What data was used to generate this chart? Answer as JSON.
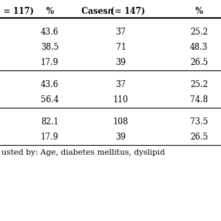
{
  "header_col0": "= 117)",
  "header_col1": "%",
  "header_col2_pre": "Cases (",
  "header_col2_italic": "n",
  "header_col2_post": " = 147)",
  "header_col3": "%",
  "sections": [
    {
      "rows": [
        [
          "43.6",
          "37",
          "25.2"
        ],
        [
          "38.5",
          "71",
          "48.3"
        ],
        [
          "17.9",
          "39",
          "26.5"
        ]
      ]
    },
    {
      "rows": [
        [
          "43.6",
          "37",
          "25.2"
        ],
        [
          "56.4",
          "110",
          "74.8"
        ]
      ]
    },
    {
      "rows": [
        [
          "82.1",
          "108",
          "73.5"
        ],
        [
          "17.9",
          "39",
          "26.5"
        ]
      ]
    }
  ],
  "footer": "usted by: Age, diabetes mellitus, dyslipid",
  "bg_color": "#ffffff",
  "line_color": "#000000",
  "text_color": "#000000",
  "header_fontsize": 8.5,
  "body_fontsize": 8.5,
  "footer_fontsize": 8.2
}
